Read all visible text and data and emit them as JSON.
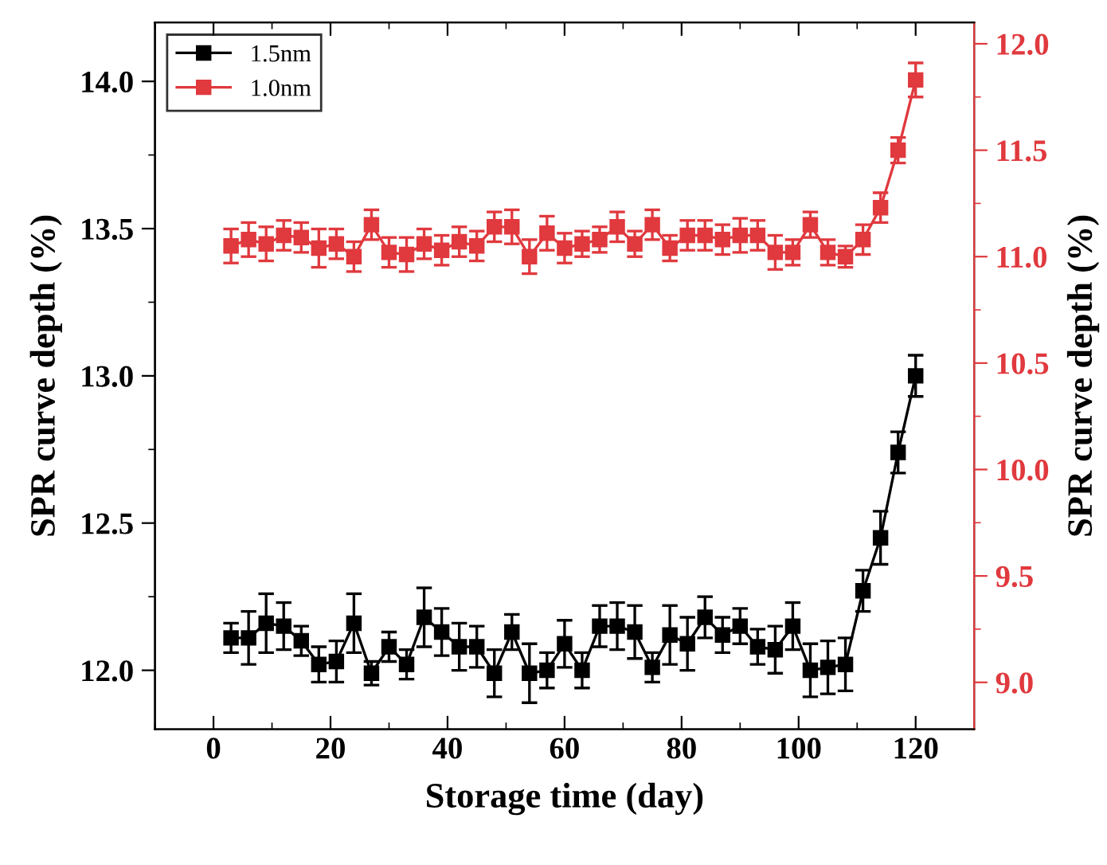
{
  "chart_data": {
    "type": "line",
    "xlabel": "Storage time (day)",
    "ylabel": "SPR curve depth (%)",
    "y2label": "SPR curve depth (%)",
    "x": [
      3,
      6,
      9,
      12,
      15,
      18,
      21,
      24,
      27,
      30,
      33,
      36,
      39,
      42,
      45,
      48,
      51,
      54,
      57,
      60,
      63,
      66,
      69,
      72,
      75,
      78,
      81,
      84,
      87,
      90,
      93,
      96,
      99,
      102,
      105,
      108,
      111,
      114,
      117,
      120
    ],
    "xlim": [
      -10,
      130
    ],
    "xticks": [
      0,
      20,
      40,
      60,
      80,
      100,
      120
    ],
    "ylim": [
      11.8,
      14.2
    ],
    "yticks": [
      {
        "value": 12,
        "label": "12.0"
      },
      12.5,
      {
        "value": 13,
        "label": "13.0"
      },
      13.5,
      {
        "value": 14,
        "label": "14.0"
      }
    ],
    "y2lim": [
      8.78,
      12.1
    ],
    "y2ticks": [
      {
        "value": 9,
        "label": "9.0"
      },
      9.5,
      {
        "value": 10,
        "label": "10.0"
      },
      10.5,
      {
        "value": 11,
        "label": "11.0"
      },
      11.5,
      {
        "value": 12,
        "label": "12.0"
      }
    ],
    "marker": "square",
    "line_style": "solid",
    "legend": "top left",
    "grid": false,
    "series": [
      {
        "name": "1.5nm",
        "color": "#000000",
        "values": [
          12.11,
          12.11,
          12.16,
          12.15,
          12.1,
          12.02,
          12.03,
          12.16,
          11.99,
          12.08,
          12.02,
          12.18,
          12.13,
          12.08,
          12.08,
          11.99,
          12.13,
          11.99,
          12.0,
          12.09,
          12.0,
          12.15,
          12.15,
          12.13,
          12.01,
          12.12,
          12.09,
          12.18,
          12.12,
          12.15,
          12.08,
          12.07,
          12.15,
          12.0,
          12.01,
          12.02,
          12.27,
          12.45,
          12.74,
          13.0
        ],
        "errors": [
          0.05,
          0.09,
          0.1,
          0.08,
          0.05,
          0.06,
          0.07,
          0.1,
          0.04,
          0.05,
          0.05,
          0.1,
          0.08,
          0.08,
          0.07,
          0.08,
          0.06,
          0.1,
          0.06,
          0.08,
          0.06,
          0.07,
          0.08,
          0.09,
          0.05,
          0.1,
          0.09,
          0.07,
          0.06,
          0.06,
          0.06,
          0.08,
          0.08,
          0.09,
          0.09,
          0.09,
          0.07,
          0.09,
          0.07,
          0.07
        ]
      },
      {
        "name": "1.0nm",
        "color": "#e0393e",
        "axis": "y2",
        "values": [
          11.05,
          11.08,
          11.06,
          11.1,
          11.09,
          11.04,
          11.06,
          11.0,
          11.15,
          11.02,
          11.01,
          11.06,
          11.03,
          11.07,
          11.05,
          11.14,
          11.14,
          11.0,
          11.11,
          11.04,
          11.06,
          11.08,
          11.14,
          11.06,
          11.15,
          11.04,
          11.1,
          11.1,
          11.08,
          11.1,
          11.1,
          11.02,
          11.02,
          11.15,
          11.02,
          11.0,
          11.08,
          11.23,
          11.5,
          11.83
        ],
        "errors": [
          0.08,
          0.08,
          0.08,
          0.07,
          0.07,
          0.09,
          0.07,
          0.07,
          0.07,
          0.07,
          0.08,
          0.07,
          0.07,
          0.07,
          0.07,
          0.07,
          0.08,
          0.08,
          0.08,
          0.07,
          0.06,
          0.06,
          0.07,
          0.06,
          0.07,
          0.06,
          0.07,
          0.07,
          0.07,
          0.08,
          0.07,
          0.08,
          0.06,
          0.06,
          0.06,
          0.05,
          0.07,
          0.07,
          0.06,
          0.08
        ]
      }
    ]
  }
}
